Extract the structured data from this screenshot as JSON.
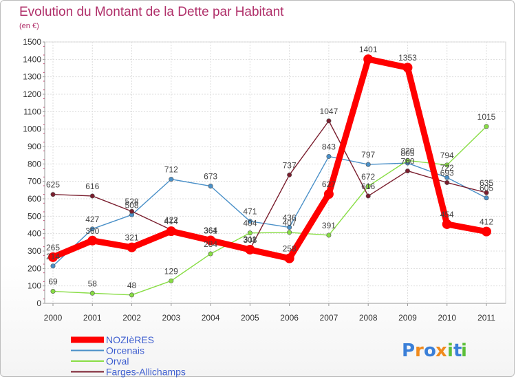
{
  "chart_data": {
    "type": "line",
    "title": "Evolution du Montant de la Dette par Habitant",
    "subtitle": "(en €)",
    "xlabel": "",
    "ylabel": "",
    "categories": [
      "2000",
      "2001",
      "2002",
      "2003",
      "2004",
      "2005",
      "2006",
      "2007",
      "2008",
      "2009",
      "2010",
      "2011"
    ],
    "ylim": [
      0,
      1500
    ],
    "yticks": [
      "0",
      "100",
      "200",
      "300",
      "400",
      "500",
      "600",
      "700",
      "800",
      "900",
      "1000",
      "1100",
      "1200",
      "1300",
      "1400",
      "1500"
    ],
    "grid": true,
    "legend_position": "bottom-left",
    "series": [
      {
        "name": "NOZIèRES",
        "color": "#ff0000",
        "values": [
          265,
          360,
          321,
          414,
          361,
          308,
          258,
          627,
          1401,
          1353,
          454,
          412
        ],
        "labels": [
          "265",
          "360",
          "321",
          "414",
          "361",
          "308",
          "258",
          "627",
          "1401",
          "1353",
          "454",
          "412"
        ]
      },
      {
        "name": "Orcenais",
        "color": "#4a90c8",
        "values": [
          214,
          427,
          508,
          712,
          673,
          471,
          436,
          843,
          797,
          805,
          722,
          605
        ],
        "labels": [
          "214",
          "427",
          "508",
          "712",
          "673",
          "471",
          "436",
          "843",
          "797",
          "805",
          "722",
          "605"
        ]
      },
      {
        "name": "Orval",
        "color": "#88dd44",
        "values": [
          69,
          58,
          48,
          129,
          284,
          404,
          407,
          391,
          672,
          820,
          794,
          1015
        ],
        "labels": [
          "69",
          "58",
          "48",
          "129",
          "284",
          "404",
          "407",
          "391",
          "672",
          "820",
          "794",
          "1015"
        ]
      },
      {
        "name": "Farges-Allichamps",
        "color": "#7a1e2e",
        "values": [
          625,
          616,
          528,
          422,
          364,
          311,
          737,
          1047,
          616,
          760,
          693,
          635
        ],
        "labels": [
          "625",
          "616",
          "528",
          "422",
          "364",
          "311",
          "737",
          "1047",
          "616",
          "760",
          "693",
          "635"
        ]
      }
    ]
  },
  "logo": {
    "letters": [
      "P",
      "r",
      "o",
      "x",
      "i",
      "t",
      "i"
    ],
    "colors": [
      "#3a7fd8",
      "#f08a1c",
      "#3a7fd8",
      "#f08a1c",
      "#5cbf3a",
      "#3a7fd8",
      "#5cbf3a"
    ]
  }
}
